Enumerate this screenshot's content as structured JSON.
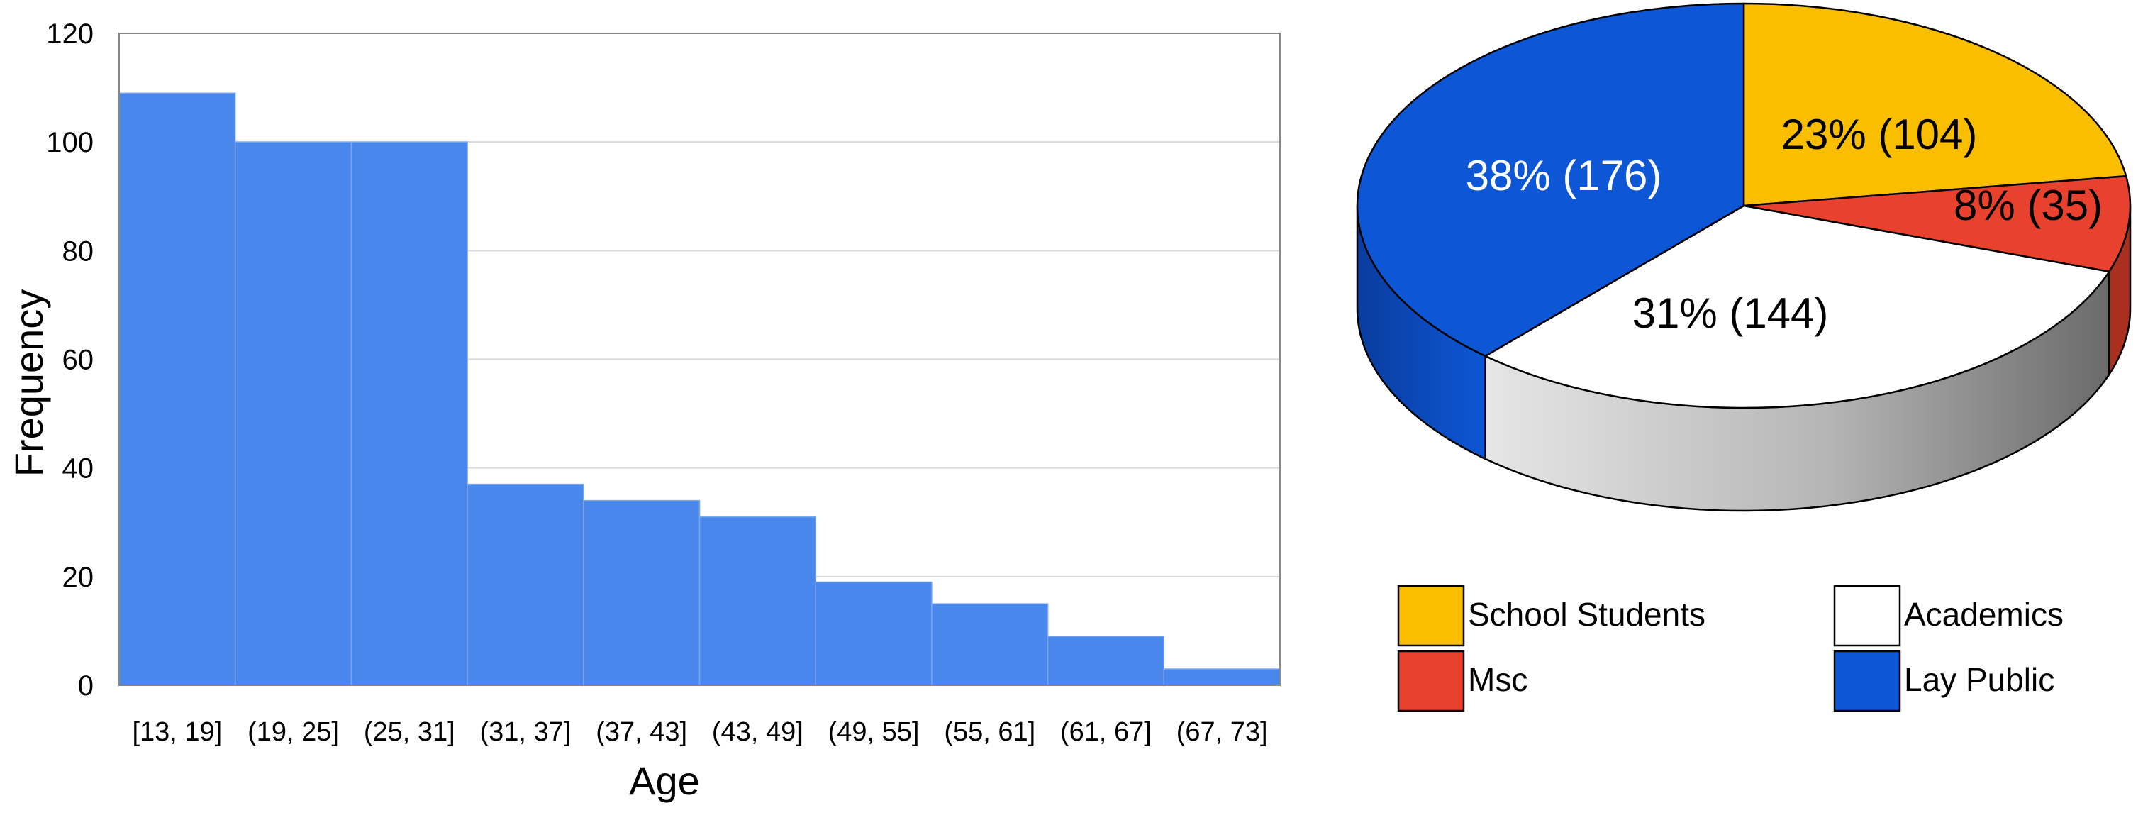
{
  "chart_data": [
    {
      "type": "bar",
      "subtype": "histogram",
      "title": "",
      "xlabel": "Age",
      "ylabel": "Frequency",
      "categories": [
        "[13, 19]",
        "(19, 25]",
        "(25, 31]",
        "(31, 37]",
        "(37, 43]",
        "(43, 49]",
        "(49, 55]",
        "(55, 61]",
        "(61, 67]",
        "(67, 73]"
      ],
      "values": [
        109,
        100,
        100,
        37,
        34,
        31,
        19,
        15,
        9,
        3
      ],
      "ylim": [
        0,
        120
      ],
      "yticks": [
        0,
        20,
        40,
        60,
        80,
        100,
        120
      ],
      "grid": "horizontal",
      "colors": {
        "bar": "#4a87ec",
        "bar_edge": "#7aa6ee",
        "grid": "#d9d9d9",
        "frame": "#888888"
      }
    },
    {
      "type": "pie",
      "subtype": "3d",
      "title": "",
      "slices": [
        {
          "name": "School Students",
          "value": 104,
          "label": "23% (104)",
          "color": "#f9be00"
        },
        {
          "name": "Msc",
          "value": 35,
          "label": "8% (35)",
          "color": "#e8412d"
        },
        {
          "name": "Academics",
          "value": 144,
          "label": "31% (144)",
          "color": "#ffffff"
        },
        {
          "name": "Lay Public",
          "value": 176,
          "label": "38% (176)",
          "color": "#0d56d6"
        }
      ],
      "legend": {
        "placement": "bottom",
        "entries": [
          "School Students",
          "Academics",
          "Msc",
          "Lay Public"
        ]
      }
    }
  ]
}
